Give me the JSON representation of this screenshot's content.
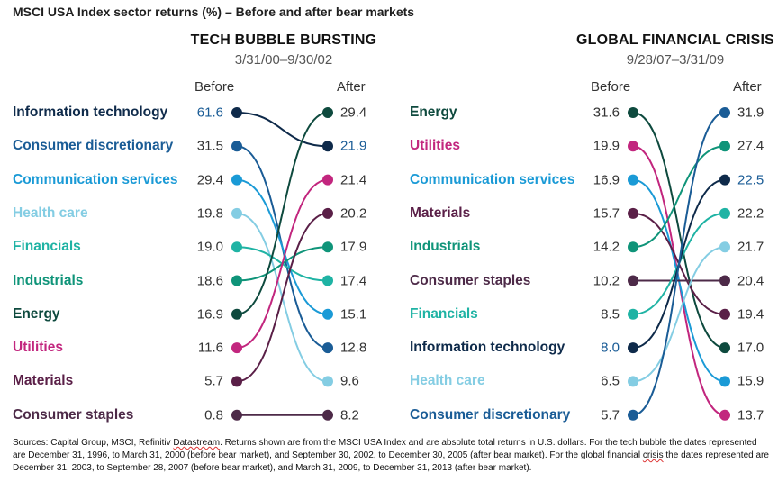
{
  "title": "MSCI USA Index sector returns (%) – Before and after bear markets",
  "colors": {
    "Information technology": "#0e2a4a",
    "Consumer discretionary": "#1a5c96",
    "Communication services": "#1a9ad6",
    "Health care": "#84cde3",
    "Financials": "#1fb3a4",
    "Industrials": "#0f9479",
    "Energy": "#0e4a3e",
    "Utilities": "#c2267e",
    "Materials": "#5a1f47",
    "Consumer staples": "#4d2a48"
  },
  "chart_data": [
    {
      "type": "slope",
      "title": "TECH BUBBLE BURSTING",
      "subtitle": "3/31/00–9/30/02",
      "before_label": "Before",
      "after_label": "After",
      "series": [
        {
          "name": "Information technology",
          "before": 61.6,
          "after": 21.9
        },
        {
          "name": "Consumer discretionary",
          "before": 31.5,
          "after": 12.8
        },
        {
          "name": "Communication services",
          "before": 29.4,
          "after": 15.1
        },
        {
          "name": "Health care",
          "before": 19.8,
          "after": 9.6
        },
        {
          "name": "Financials",
          "before": 19.0,
          "after": 17.4
        },
        {
          "name": "Industrials",
          "before": 18.6,
          "after": 17.9
        },
        {
          "name": "Energy",
          "before": 16.9,
          "after": 29.4
        },
        {
          "name": "Utilities",
          "before": 11.6,
          "after": 21.4
        },
        {
          "name": "Materials",
          "before": 5.7,
          "after": 20.2
        },
        {
          "name": "Consumer staples",
          "before": 0.8,
          "after": 8.2
        }
      ]
    },
    {
      "type": "slope",
      "title": "GLOBAL FINANCIAL CRISIS",
      "subtitle": "9/28/07–3/31/09",
      "before_label": "Before",
      "after_label": "After",
      "series": [
        {
          "name": "Energy",
          "before": 31.6,
          "after": 17.0
        },
        {
          "name": "Utilities",
          "before": 19.9,
          "after": 13.7
        },
        {
          "name": "Communication services",
          "before": 16.9,
          "after": 15.9
        },
        {
          "name": "Materials",
          "before": 15.7,
          "after": 19.4
        },
        {
          "name": "Industrials",
          "before": 14.2,
          "after": 27.4
        },
        {
          "name": "Consumer staples",
          "before": 10.2,
          "after": 20.4
        },
        {
          "name": "Financials",
          "before": 8.5,
          "after": 22.2
        },
        {
          "name": "Information technology",
          "before": 8.0,
          "after": 22.5
        },
        {
          "name": "Health care",
          "before": 6.5,
          "after": 21.7
        },
        {
          "name": "Consumer discretionary",
          "before": 5.7,
          "after": 31.9
        }
      ]
    }
  ],
  "footer": {
    "text_1": "Sources: Capital Group, MSCI, Refinitiv ",
    "squiggle_1": "Datastream",
    "text_2": ". Returns shown are from the MSCI USA Index and are absolute total returns in U.S. dollars. For the tech bubble the dates represented are December 31, 1996, to March 31, 2000 (before bear market), and September 30, 2002, to December 30, 2005 (after bear market). For the global financial ",
    "squiggle_2": "crisis",
    "text_3": " the dates represented are December 31, 2003, to September 28, 2007 (before bear market), and March 31, 2009, to December 31, 2013 (after bear market)."
  }
}
